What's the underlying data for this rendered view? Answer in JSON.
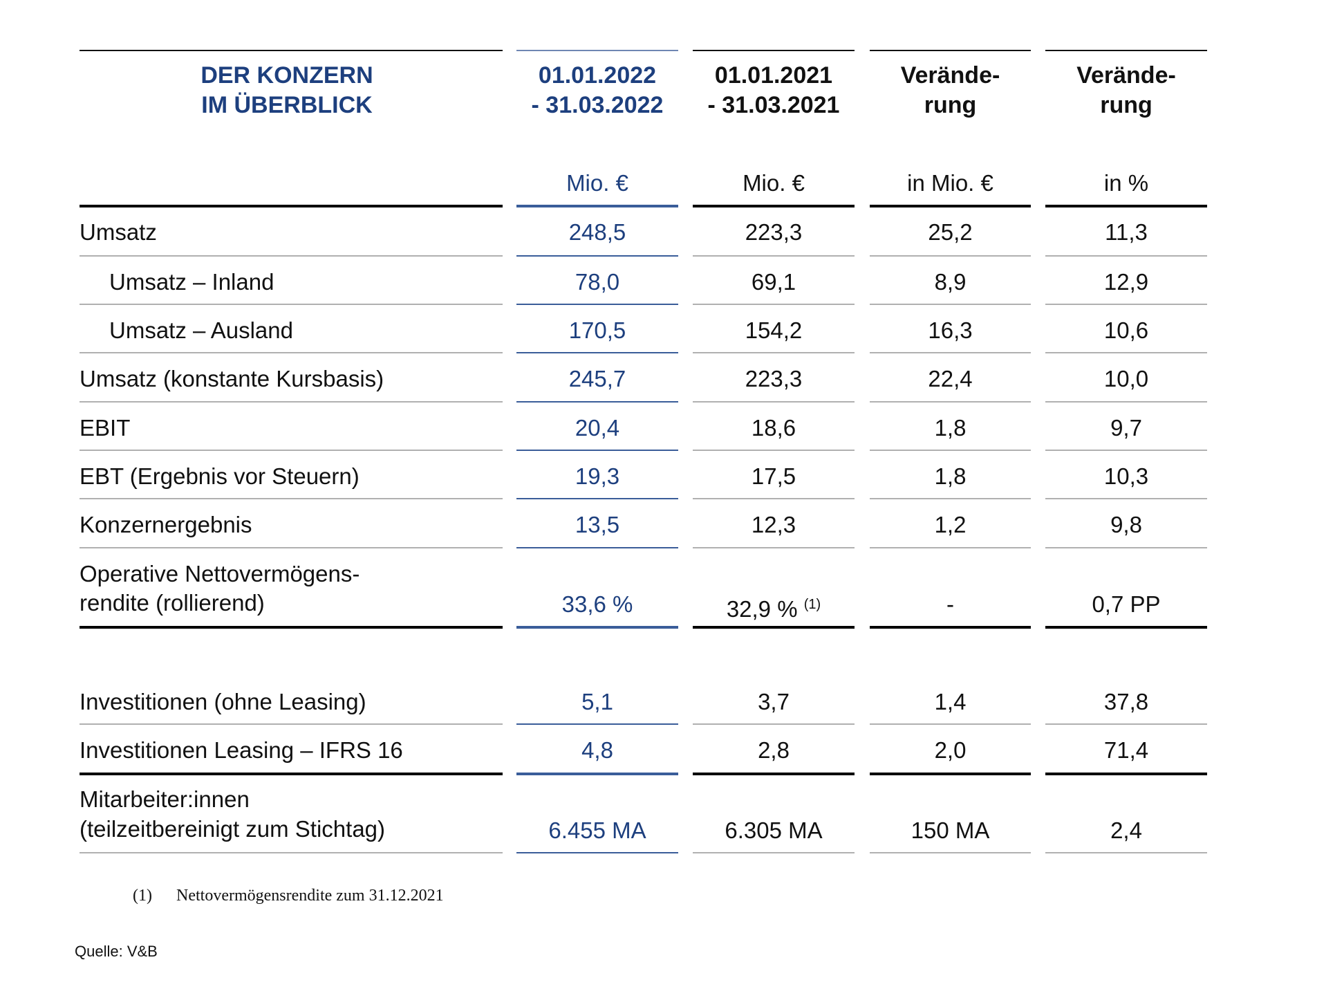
{
  "header": {
    "title_line1": "DER KONZERN",
    "title_line2": "IM ÜBERBLICK",
    "columns": [
      {
        "line1": "01.01.2022",
        "line2": "- 31.03.2022",
        "unit": "Mio. €"
      },
      {
        "line1": "01.01.2021",
        "line2": "- 31.03.2021",
        "unit": "Mio. €"
      },
      {
        "line1": "Verände-",
        "line2": "rung",
        "unit": "in Mio. €"
      },
      {
        "line1": "Verände-",
        "line2": "rung",
        "unit": "in %"
      }
    ]
  },
  "rows": [
    {
      "label": "Umsatz",
      "values": [
        "248,5",
        "223,3",
        "25,2",
        "11,3"
      ]
    },
    {
      "label": "Umsatz – Inland",
      "values": [
        "78,0",
        "69,1",
        "8,9",
        "12,9"
      ],
      "indent": true
    },
    {
      "label": "Umsatz – Ausland",
      "values": [
        "170,5",
        "154,2",
        "16,3",
        "10,6"
      ],
      "indent": true
    },
    {
      "label": "Umsatz (konstante Kursbasis)",
      "values": [
        "245,7",
        "223,3",
        "22,4",
        "10,0"
      ]
    },
    {
      "label": "EBIT",
      "values": [
        "20,4",
        "18,6",
        "1,8",
        "9,7"
      ]
    },
    {
      "label": "EBT (Ergebnis vor Steuern)",
      "values": [
        "19,3",
        "17,5",
        "1,8",
        "10,3"
      ]
    },
    {
      "label": "Konzernergebnis",
      "values": [
        "13,5",
        "12,3",
        "1,2",
        "9,8"
      ]
    }
  ],
  "onr_row": {
    "label_line1": "Operative Nettovermögens-",
    "label_line2": "rendite (rollierend)",
    "values": [
      "33,6 %",
      "32,9 %",
      "-",
      "0,7 PP"
    ],
    "footnote_marker": "(1)"
  },
  "invest_rows": [
    {
      "label": "Investitionen (ohne Leasing)",
      "values": [
        "5,1",
        "3,7",
        "1,4",
        "37,8"
      ]
    },
    {
      "label": "Investitionen Leasing – IFRS 16",
      "values": [
        "4,8",
        "2,8",
        "2,0",
        "71,4"
      ]
    }
  ],
  "employee_row": {
    "label_line1": "Mitarbeiter:innen",
    "label_line2": "(teilzeitbereinigt zum Stichtag)",
    "values": [
      "6.455 MA",
      "6.305 MA",
      "150 MA",
      "2,4"
    ]
  },
  "footnote": {
    "marker": "(1)",
    "text": "Nettovermögensrendite zum 31.12.2021"
  },
  "source": "Quelle: V&B",
  "colors": {
    "accent": "#1d3f7e",
    "line_gray": "#b0b0b0"
  }
}
